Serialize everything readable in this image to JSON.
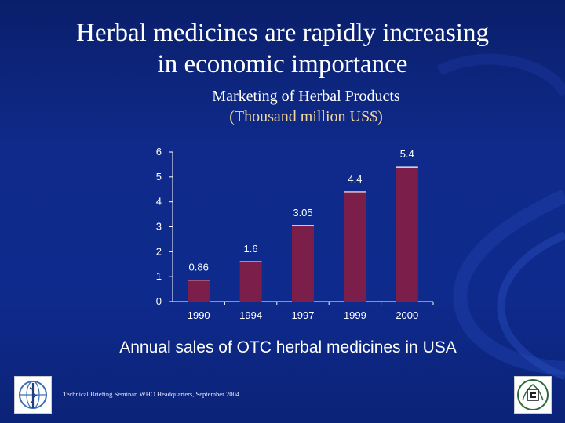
{
  "slide": {
    "title_line1": "Herbal medicines are rapidly increasing",
    "title_line2": "in economic importance",
    "subtitle_line1": "Marketing of Herbal Products",
    "subtitle_line2": "(Thousand million US$)",
    "caption": "Annual sales of OTC herbal medicines in USA",
    "footer": "Technical Briefing Seminar, WHO Headquarters, September 2004"
  },
  "logos": {
    "left": "who-emblem-icon",
    "right": "organization-emblem-icon"
  },
  "colors": {
    "background": "#0e2a8c",
    "bar_fill": "#7b1f4a",
    "bar_edge": "#ffffff",
    "subtitle_accent": "#f2d7a0"
  },
  "chart_data": {
    "type": "bar",
    "title": "Marketing of Herbal Products (Thousand million US$)",
    "categories": [
      "1990",
      "1994",
      "1997",
      "1999",
      "2000"
    ],
    "values": [
      0.86,
      1.6,
      3.05,
      4.4,
      5.4
    ],
    "value_labels": [
      "0.86",
      "1.6",
      "3.05",
      "4.4",
      "5.4"
    ],
    "y_ticks": [
      0,
      1,
      2,
      3,
      4,
      5,
      6
    ],
    "ylim": [
      0,
      6
    ],
    "xlabel": "",
    "ylabel": "",
    "grid": false,
    "legend": "none"
  }
}
